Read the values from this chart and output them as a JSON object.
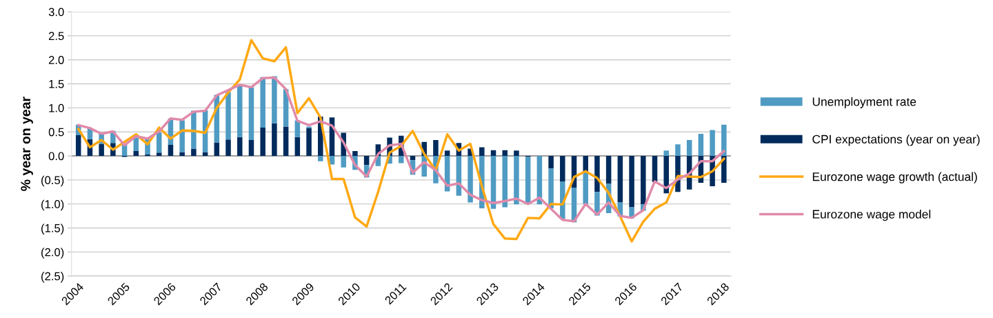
{
  "chart_data": {
    "type": "bar",
    "stacked": true,
    "ylabel": "% year on year",
    "categories": [
      "2004",
      null,
      null,
      null,
      "2005",
      null,
      null,
      null,
      "2006",
      null,
      null,
      null,
      "2007",
      null,
      null,
      null,
      "2008",
      null,
      null,
      null,
      "2009",
      null,
      null,
      null,
      "2010",
      null,
      null,
      null,
      "2011",
      null,
      null,
      null,
      "2012",
      null,
      null,
      null,
      "2013",
      null,
      null,
      null,
      "2014",
      null,
      null,
      null,
      "2015",
      null,
      null,
      null,
      "2016",
      null,
      null,
      null,
      "2017",
      null,
      null,
      null,
      "2018"
    ],
    "ylim": [
      -2.5,
      3.0
    ],
    "yticks": [
      {
        "value": -2.5,
        "label": "(2.5)"
      },
      {
        "value": -2.0,
        "label": "(2.0)"
      },
      {
        "value": -1.5,
        "label": "(1.5)"
      },
      {
        "value": -1.0,
        "label": "(1.0)"
      },
      {
        "value": -0.5,
        "label": "(0.5)"
      },
      {
        "value": 0.0,
        "label": "0.0"
      },
      {
        "value": 0.5,
        "label": "0.5"
      },
      {
        "value": 1.0,
        "label": "1.0"
      },
      {
        "value": 1.5,
        "label": "1.5"
      },
      {
        "value": 2.0,
        "label": "2.0"
      },
      {
        "value": 2.5,
        "label": "2.5"
      },
      {
        "value": 3.0,
        "label": "3.0"
      }
    ],
    "grid": "y",
    "legend": "right",
    "series": [
      {
        "name": "CPI expectations (year on year)",
        "color": "#002b5c",
        "values": [
          0.43,
          0.35,
          0.25,
          0.27,
          -0.02,
          0.1,
          0.03,
          0.07,
          0.23,
          0.08,
          0.15,
          0.08,
          0.28,
          0.34,
          0.39,
          0.33,
          0.59,
          0.68,
          0.61,
          0.39,
          0.58,
          0.82,
          0.8,
          0.48,
          0.1,
          -0.19,
          0.24,
          0.38,
          0.42,
          -0.09,
          0.29,
          0.33,
          0.11,
          0.27,
          0.15,
          0.18,
          0.12,
          0.12,
          0.11,
          -0.02,
          0.0,
          -0.26,
          -0.53,
          -0.66,
          -0.33,
          -0.75,
          -0.58,
          -0.96,
          -1.07,
          -1.01,
          -0.54,
          -0.78,
          -0.75,
          -0.7,
          -0.56,
          -0.63,
          -0.56
        ]
      },
      {
        "name": "Unemployment rate",
        "color": "#4f9bc3",
        "values": [
          0.22,
          0.22,
          0.21,
          0.25,
          0.24,
          0.28,
          0.32,
          0.42,
          0.55,
          0.66,
          0.79,
          0.87,
          0.99,
          0.99,
          1.08,
          1.1,
          1.05,
          0.98,
          0.78,
          0.35,
          0.03,
          -0.11,
          -0.18,
          -0.24,
          -0.29,
          -0.26,
          -0.21,
          -0.16,
          -0.15,
          -0.3,
          -0.43,
          -0.57,
          -0.74,
          -0.83,
          -0.97,
          -1.09,
          -1.1,
          -1.07,
          -1.01,
          -0.99,
          -1.01,
          -0.83,
          -0.78,
          -0.72,
          -0.67,
          -0.49,
          -0.61,
          -0.3,
          -0.23,
          -0.13,
          0.0,
          0.11,
          0.24,
          0.33,
          0.46,
          0.54,
          0.65
        ]
      },
      {
        "name": "Eurozone wage growth (actual)",
        "type": "line",
        "color": "#ffa812",
        "values": [
          0.56,
          0.18,
          0.33,
          0.13,
          0.29,
          0.45,
          0.24,
          0.59,
          0.36,
          0.53,
          0.52,
          0.48,
          1.0,
          1.32,
          1.59,
          2.41,
          2.03,
          1.97,
          2.26,
          0.89,
          1.2,
          0.8,
          -0.48,
          -0.48,
          -1.28,
          -1.47,
          -0.75,
          0.07,
          0.21,
          0.52,
          0.04,
          -0.3,
          0.45,
          0.11,
          0.25,
          -0.63,
          -1.42,
          -1.72,
          -1.73,
          -1.29,
          -1.3,
          -1.0,
          -1.01,
          -0.44,
          -0.32,
          -0.46,
          -0.77,
          -1.26,
          -1.78,
          -1.37,
          -1.1,
          -0.97,
          -0.42,
          -0.43,
          -0.44,
          -0.32,
          -0.06
        ]
      },
      {
        "name": "Eurozone wage model",
        "type": "line",
        "color": "#e08aaa",
        "values": [
          0.64,
          0.58,
          0.46,
          0.51,
          0.22,
          0.41,
          0.36,
          0.51,
          0.78,
          0.75,
          0.92,
          0.94,
          1.26,
          1.37,
          1.48,
          1.43,
          1.62,
          1.63,
          1.39,
          0.73,
          0.64,
          0.72,
          0.63,
          0.28,
          -0.19,
          -0.43,
          0.04,
          0.22,
          0.25,
          -0.35,
          -0.13,
          -0.3,
          -0.62,
          -0.57,
          -0.81,
          -0.92,
          -0.98,
          -0.94,
          -0.89,
          -1.0,
          -0.87,
          -1.1,
          -1.33,
          -1.36,
          -1.0,
          -1.22,
          -0.97,
          -1.25,
          -1.29,
          -1.13,
          -0.53,
          -0.67,
          -0.49,
          -0.37,
          -0.11,
          -0.11,
          0.1
        ]
      }
    ]
  }
}
